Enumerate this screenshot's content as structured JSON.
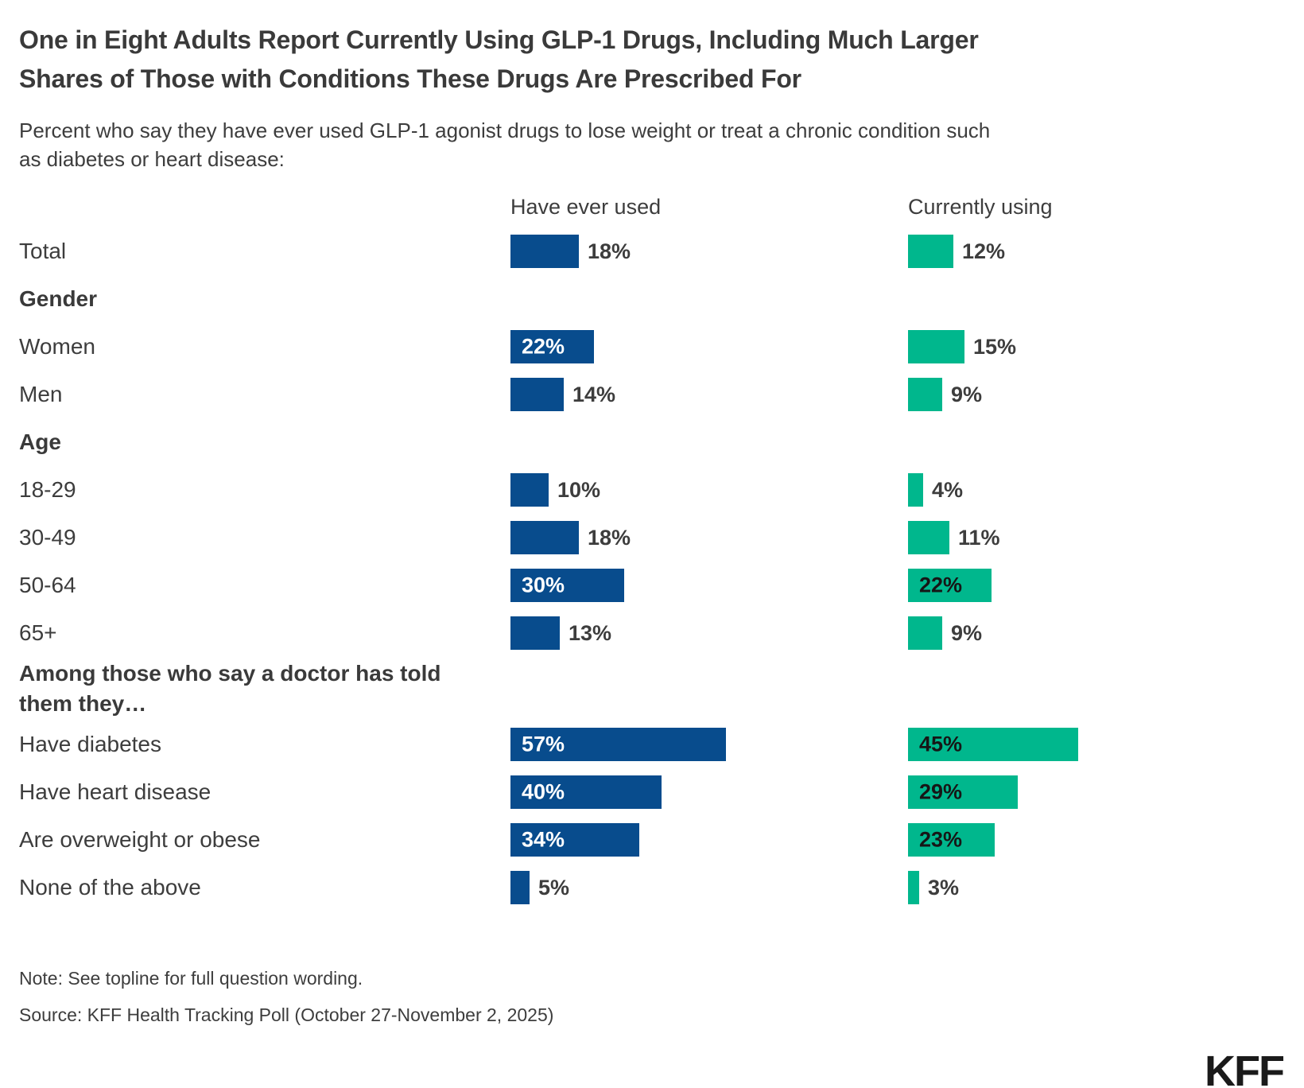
{
  "header": {
    "title_line1": "One in Eight Adults Report Currently Using GLP-1 Drugs, Including Much Larger",
    "title_line2": "Shares of Those with Conditions These Drugs Are Prescribed For",
    "subtitle_line1": "Percent who say they have ever used GLP-1 agonist drugs to lose weight or treat a chronic condition such",
    "subtitle_line2": "as diabetes or heart disease:"
  },
  "columns": [
    "Have ever used",
    "Currently using"
  ],
  "chart_data": {
    "type": "bar",
    "orientation": "horizontal",
    "unit": "%",
    "legend_position": "column headers above bars",
    "grid": false,
    "xlim": [
      0,
      100
    ],
    "series_names": [
      "Have ever used",
      "Currently using"
    ],
    "colors": {
      "have_ever_used": "#084C8D",
      "currently_using": "#00B78D"
    },
    "inside_label_threshold": 22,
    "label_format": "{value}%",
    "rows": [
      {
        "type": "category",
        "label": "Total",
        "ever": 18,
        "current": 12
      },
      {
        "type": "section",
        "label": "Gender"
      },
      {
        "type": "category",
        "label": "Women",
        "ever": 22,
        "current": 15
      },
      {
        "type": "category",
        "label": "Men",
        "ever": 14,
        "current": 9
      },
      {
        "type": "section",
        "label": "Age"
      },
      {
        "type": "category",
        "label": "18-29",
        "ever": 10,
        "current": 4
      },
      {
        "type": "category",
        "label": "30-49",
        "ever": 18,
        "current": 11
      },
      {
        "type": "category",
        "label": "50-64",
        "ever": 30,
        "current": 22
      },
      {
        "type": "category",
        "label": "65+",
        "ever": 13,
        "current": 9
      },
      {
        "type": "section",
        "label": "Among those who say a doctor has told them they…",
        "tall": true
      },
      {
        "type": "category",
        "label": "Have diabetes",
        "ever": 57,
        "current": 45
      },
      {
        "type": "category",
        "label": "Have heart disease",
        "ever": 40,
        "current": 29
      },
      {
        "type": "category",
        "label": "Are overweight or obese",
        "ever": 34,
        "current": 23
      },
      {
        "type": "category",
        "label": "None of the above",
        "ever": 5,
        "current": 3
      }
    ]
  },
  "footer": {
    "note": "Note: See topline for full question wording.",
    "source": "Source: KFF Health Tracking Poll (October 27-November 2, 2025)",
    "logo": "KFF"
  }
}
